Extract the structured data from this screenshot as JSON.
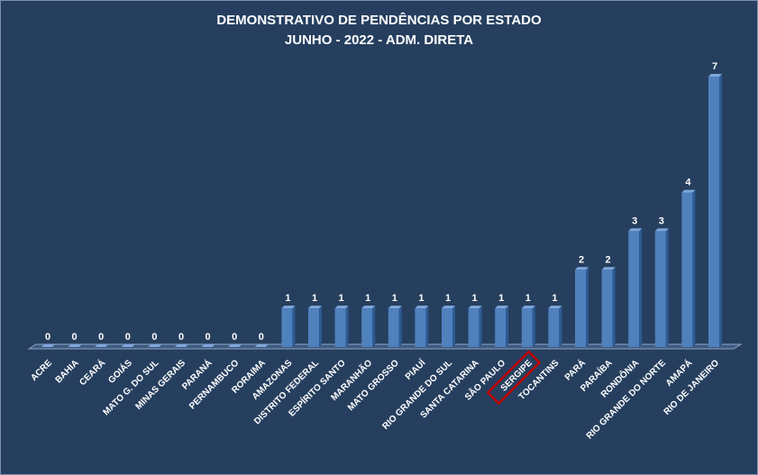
{
  "chart_data": {
    "type": "bar",
    "title": "DEMONSTRATIVO DE PENDÊNCIAS POR ESTADO",
    "subtitle": "JUNHO - 2022 - ADM. DIRETA",
    "categories": [
      "ACRE",
      "BAHIA",
      "CEARÁ",
      "GOIÁS",
      "MATO G. DO SUL",
      "MINAS GERAIS",
      "PARANÁ",
      "PERNAMBUCO",
      "RORAIMA",
      "AMAZONAS",
      "DISTRITO FEDERAL",
      "ESPÍRITO SANTO",
      "MARANHÃO",
      "MATO GROSSO",
      "PIAUÍ",
      "RIO GRANDE DO SUL",
      "SANTA CATARINA",
      "SÃO PAULO",
      "SERGIPE",
      "TOCANTINS",
      "PARÁ",
      "PARAÍBA",
      "RONDÔNIA",
      "RIO GRANDE DO NORTE",
      "AMAPÁ",
      "RIO DE JANEIRO"
    ],
    "values": [
      0,
      0,
      0,
      0,
      0,
      0,
      0,
      0,
      0,
      1,
      1,
      1,
      1,
      1,
      1,
      1,
      1,
      1,
      1,
      1,
      2,
      2,
      3,
      3,
      4,
      7
    ],
    "ylim": [
      0,
      7
    ],
    "grid": false,
    "legend": "none",
    "highlighted_category": "SERGIPE",
    "colors": {
      "background": "#263F5F",
      "bar": "#4F81BD",
      "bar_top": "#7FA7DC",
      "bar_side": "#2E5A93",
      "highlight": "#C00000",
      "text": "#FFFFFF"
    }
  }
}
